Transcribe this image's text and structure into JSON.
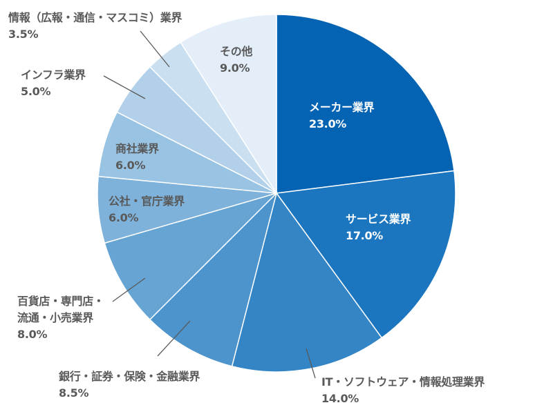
{
  "chart_data": {
    "type": "pie",
    "start": "top",
    "direction": "clockwise",
    "slices": [
      {
        "label": "メーカー業界",
        "value": 23.0,
        "display": "23.0%",
        "color": "#0563b4"
      },
      {
        "label": "サービス業界",
        "value": 17.0,
        "display": "17.0%",
        "color": "#1b76bf"
      },
      {
        "label": "IT・ソフトウェア・情報処理業界",
        "value": 14.0,
        "display": "14.0%",
        "color": "#3385c6"
      },
      {
        "label": "銀行・証券・保険・金融業界",
        "value": 8.5,
        "display": "8.5%",
        "color": "#4d94cc"
      },
      {
        "label": "百貨店・専門店・\n流通・小売業界",
        "value": 8.0,
        "display": "8.0%",
        "color": "#66a5d3"
      },
      {
        "label": "公社・官庁業界",
        "value": 6.0,
        "display": "6.0%",
        "color": "#7eb2db"
      },
      {
        "label": "商社業界",
        "value": 6.0,
        "display": "6.0%",
        "color": "#98c3e2"
      },
      {
        "label": "インフラ業界",
        "value": 5.0,
        "display": "5.0%",
        "color": "#b2d0e9"
      },
      {
        "label": "情報（広報・通信・マスコミ）業界",
        "value": 3.5,
        "display": "3.5%",
        "color": "#cadff0"
      },
      {
        "label": "その他",
        "value": 9.0,
        "display": "9.0%",
        "color": "#e3eef8"
      }
    ]
  }
}
